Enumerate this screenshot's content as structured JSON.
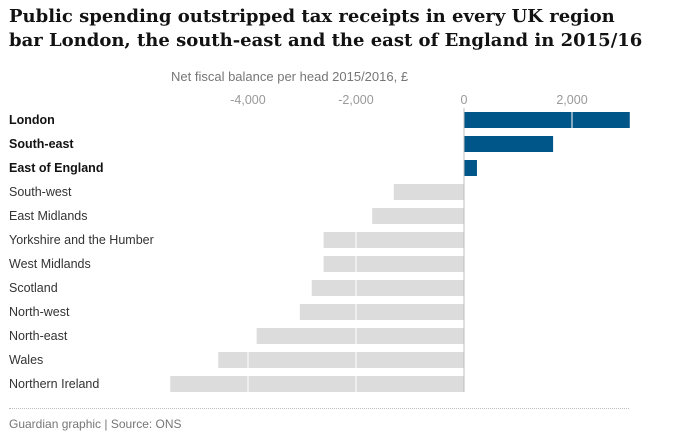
{
  "title": "Public spending outstripped tax receipts in every UK region bar London, the south-east and the east of England in 2015/16",
  "source": "Guardian graphic | Source: ONS",
  "colors": {
    "positive": "#005689",
    "negative": "#dcdcdc",
    "tick_text": "#999999"
  },
  "chart_data": {
    "type": "bar",
    "orientation": "horizontal",
    "xlabel": "Net fiscal balance per head 2015/2016, £",
    "xlim": [
      -5300,
      3050
    ],
    "xticks": [
      -4000,
      -2000,
      0,
      2000
    ],
    "xtick_labels": [
      "-4,000",
      "-2,000",
      "0",
      "2,000"
    ],
    "grid": true,
    "categories": [
      "London",
      "South-east",
      "East of England",
      "South-west",
      "East Midlands",
      "Yorkshire and the Humber",
      "West Midlands",
      "Scotland",
      "North-west",
      "North-east",
      "Wales",
      "Northern Ireland"
    ],
    "bold_categories": [
      "London",
      "South-east",
      "East of England"
    ],
    "values": [
      3070,
      1650,
      240,
      -1300,
      -1700,
      -2600,
      -2600,
      -2820,
      -3040,
      -3840,
      -4550,
      -5440
    ]
  }
}
